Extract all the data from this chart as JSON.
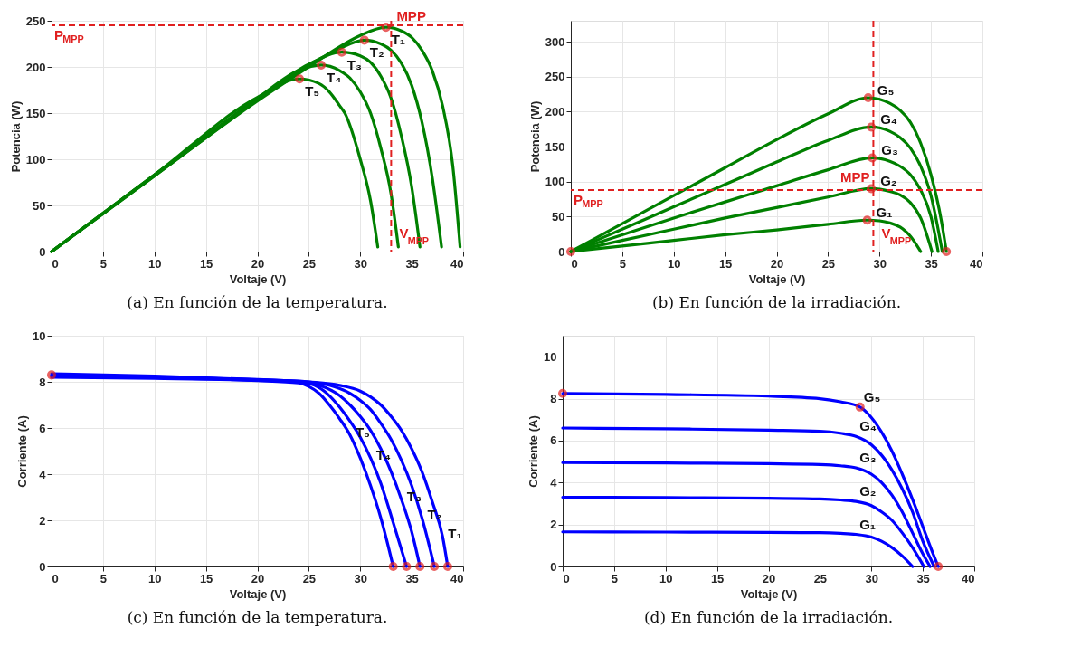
{
  "chart_data": [
    {
      "type": "line",
      "title": "(a) En función de la temperatura.",
      "xlabel": "Voltaje (V)",
      "ylabel": "Potencia (W)",
      "xlim": [
        0,
        40
      ],
      "xticks": [
        0,
        5,
        10,
        15,
        20,
        25,
        30,
        35,
        40
      ],
      "ylim": [
        0,
        250
      ],
      "yticks": [
        0,
        50,
        100,
        150,
        200,
        250
      ],
      "grid": true,
      "line_style": "solid",
      "series": [
        {
          "name": "T₁",
          "color": "#008000",
          "x": [
            0,
            10,
            20,
            25,
            28,
            30,
            32.5,
            34,
            35,
            36,
            37,
            38,
            39,
            39.7
          ],
          "values": [
            0,
            82,
            163,
            200,
            222,
            234,
            243,
            239,
            232,
            218,
            196,
            158,
            92,
            5
          ]
        },
        {
          "name": "T₂",
          "color": "#008000",
          "x": [
            0,
            10,
            20,
            25,
            28,
            30.4,
            32,
            33,
            34,
            35,
            36,
            37,
            37.9
          ],
          "values": [
            0,
            82,
            164,
            202,
            220,
            229,
            225,
            218,
            204,
            180,
            140,
            80,
            5
          ]
        },
        {
          "name": "T₃",
          "color": "#008000",
          "x": [
            0,
            10,
            20,
            25,
            28.2,
            30,
            31,
            32,
            33,
            34,
            35,
            35.8
          ],
          "values": [
            0,
            83,
            165,
            203,
            216,
            212,
            205,
            190,
            166,
            125,
            70,
            5
          ]
        },
        {
          "name": "T₄",
          "color": "#008000",
          "x": [
            0,
            10,
            20,
            24,
            26.2,
            28,
            29,
            30,
            31,
            32,
            33,
            33.7
          ],
          "values": [
            0,
            83,
            166,
            196,
            202,
            196,
            188,
            173,
            150,
            112,
            62,
            5
          ]
        },
        {
          "name": "T₅",
          "color": "#008000",
          "x": [
            0,
            10,
            20,
            24.1,
            26,
            27,
            28,
            28.5,
            30,
            31,
            31.7
          ],
          "values": [
            0,
            83,
            167,
            187,
            182,
            173,
            158,
            150,
            100,
            55,
            5
          ]
        },
        {
          "type": "scatter",
          "marker": "circle",
          "color": "#e02020",
          "x": [
            24.1,
            26.2,
            28.2,
            30.4,
            32.5
          ],
          "values": [
            187,
            202,
            216,
            229,
            243
          ]
        }
      ],
      "ref_lines": [
        {
          "axis": "y",
          "value": 245,
          "label": "P$_{MPP}$",
          "color": "#e02020",
          "line_style": "dashed"
        },
        {
          "axis": "x",
          "value": 33,
          "label": "V$_{MPP}$",
          "color": "#e02020",
          "line_style": "dashed"
        }
      ],
      "annotations": [
        "MPP"
      ]
    },
    {
      "type": "line",
      "title": "(b) En función de la irradiación.",
      "xlabel": "Voltaje (V)",
      "ylabel": "Potencia (W)",
      "xlim": [
        0,
        40
      ],
      "xticks": [
        0,
        5,
        10,
        15,
        20,
        25,
        30,
        35,
        40
      ],
      "ylim": [
        0,
        330
      ],
      "yticks": [
        0,
        50,
        100,
        150,
        200,
        250,
        300
      ],
      "grid": true,
      "line_style": "solid",
      "series": [
        {
          "name": "G₅",
          "color": "#008000",
          "x": [
            0,
            5,
            10,
            15,
            20,
            25,
            28.9,
            31,
            32,
            33,
            34,
            35,
            36,
            36.5
          ],
          "values": [
            0,
            40,
            80,
            120,
            160,
            197,
            220,
            212,
            202,
            185,
            155,
            110,
            45,
            0
          ]
        },
        {
          "name": "G₄",
          "color": "#008000",
          "x": [
            0,
            5,
            10,
            15,
            20,
            25,
            29.2,
            31,
            32,
            33,
            34,
            35,
            36.1
          ],
          "values": [
            0,
            32,
            64,
            96,
            128,
            159,
            178,
            172,
            163,
            148,
            122,
            80,
            0
          ]
        },
        {
          "name": "G₃",
          "color": "#008000",
          "x": [
            0,
            5,
            10,
            15,
            20,
            25,
            29.3,
            31,
            32,
            33,
            34,
            35,
            35.7
          ],
          "values": [
            0,
            24,
            48,
            71,
            94,
            117,
            134,
            129,
            122,
            110,
            88,
            50,
            0
          ]
        },
        {
          "name": "G₂",
          "color": "#008000",
          "x": [
            0,
            5,
            10,
            15,
            20,
            25,
            29.2,
            31,
            32,
            33,
            34,
            35.1
          ],
          "values": [
            0,
            16,
            32,
            48,
            63,
            78,
            90,
            86,
            81,
            70,
            48,
            0
          ]
        },
        {
          "name": "G₁",
          "color": "#008000",
          "x": [
            0,
            5,
            10,
            15,
            20,
            25,
            28.8,
            30,
            31,
            32,
            33,
            34
          ],
          "values": [
            0,
            8,
            16,
            24,
            31,
            39,
            45,
            44,
            41,
            35,
            22,
            0
          ]
        },
        {
          "type": "scatter",
          "marker": "circle",
          "color": "#e02020",
          "x": [
            0,
            28.9,
            29.2,
            29.3,
            29.2,
            28.8,
            36.5
          ],
          "values": [
            0,
            220,
            178,
            134,
            90,
            45,
            0
          ]
        }
      ],
      "ref_lines": [
        {
          "axis": "y",
          "value": 88,
          "label": "P$_{MPP}$",
          "color": "#e02020",
          "line_style": "dashed"
        },
        {
          "axis": "x",
          "value": 29.4,
          "label": "V$_{MPP}$",
          "color": "#e02020",
          "line_style": "dashed"
        }
      ],
      "annotations": [
        "MPP"
      ]
    },
    {
      "type": "line",
      "title": "(c) En función de la temperatura.",
      "xlabel": "Voltaje (V)",
      "ylabel": "Corriente (A)",
      "xlim": [
        0,
        40
      ],
      "xticks": [
        0,
        5,
        10,
        15,
        20,
        25,
        30,
        35,
        40
      ],
      "ylim": [
        0,
        10
      ],
      "yticks": [
        0,
        2,
        4,
        6,
        8,
        10
      ],
      "grid": true,
      "line_style": "solid",
      "series": [
        {
          "name": "T₁",
          "color": "#0000ff",
          "x": [
            0,
            10,
            20,
            25,
            28,
            30,
            31,
            32,
            33,
            34,
            35,
            36,
            37,
            38,
            38.5
          ],
          "values": [
            8.35,
            8.25,
            8.1,
            8.0,
            7.85,
            7.6,
            7.35,
            7.0,
            6.5,
            5.9,
            5.1,
            4.1,
            2.8,
            1.3,
            0
          ]
        },
        {
          "name": "T₂",
          "color": "#0000ff",
          "x": [
            0,
            10,
            20,
            25,
            27,
            29,
            30,
            31,
            32,
            33,
            34,
            35,
            36,
            37.2
          ],
          "values": [
            8.3,
            8.22,
            8.09,
            8.0,
            7.85,
            7.5,
            7.2,
            6.8,
            6.2,
            5.5,
            4.6,
            3.5,
            2.1,
            0
          ]
        },
        {
          "name": "T₃",
          "color": "#0000ff",
          "x": [
            0,
            10,
            20,
            24,
            26,
            28,
            29,
            30,
            31,
            32,
            33,
            34,
            35,
            35.8
          ],
          "values": [
            8.28,
            8.2,
            8.08,
            8.0,
            7.85,
            7.4,
            7.0,
            6.5,
            5.9,
            5.1,
            4.1,
            2.9,
            1.5,
            0
          ]
        },
        {
          "name": "T₄",
          "color": "#0000ff",
          "x": [
            0,
            10,
            20,
            24,
            26,
            27,
            28,
            29,
            30,
            31,
            32,
            33,
            34.5
          ],
          "values": [
            8.25,
            8.18,
            8.07,
            8.0,
            7.75,
            7.4,
            6.9,
            6.3,
            5.6,
            4.7,
            3.6,
            2.2,
            0
          ]
        },
        {
          "name": "T₅",
          "color": "#0000ff",
          "x": [
            0,
            10,
            20,
            24,
            25,
            26,
            27,
            28,
            29,
            30,
            31,
            32,
            33.2
          ],
          "values": [
            8.2,
            8.15,
            8.05,
            7.95,
            7.8,
            7.5,
            7.0,
            6.4,
            5.7,
            4.7,
            3.5,
            2.1,
            0
          ]
        },
        {
          "type": "scatter",
          "marker": "circle",
          "color": "#e02020",
          "x": [
            0,
            33.2,
            34.5,
            35.8,
            37.2,
            38.5
          ],
          "values": [
            8.3,
            0,
            0,
            0,
            0,
            0
          ]
        }
      ]
    },
    {
      "type": "line",
      "title": "(d) En función de la irradiación.",
      "xlabel": "Voltaje (V)",
      "ylabel": "Corriente (A)",
      "xlim": [
        0,
        40
      ],
      "xticks": [
        0,
        5,
        10,
        15,
        20,
        25,
        30,
        35,
        40
      ],
      "ylim": [
        0,
        11
      ],
      "yticks": [
        0,
        2,
        4,
        6,
        8,
        10
      ],
      "grid": true,
      "line_style": "solid",
      "series": [
        {
          "name": "G₅",
          "color": "#0000ff",
          "x": [
            0,
            10,
            20,
            25,
            27,
            28.9,
            30,
            31,
            32,
            33,
            34,
            35,
            36,
            36.5
          ],
          "values": [
            8.25,
            8.2,
            8.12,
            8.0,
            7.85,
            7.6,
            7.1,
            6.4,
            5.5,
            4.4,
            3.2,
            1.9,
            0.6,
            0
          ]
        },
        {
          "name": "G₄",
          "color": "#0000ff",
          "x": [
            0,
            10,
            20,
            25,
            27,
            28.5,
            30,
            31,
            32,
            33,
            34,
            35,
            36.1
          ],
          "values": [
            6.6,
            6.56,
            6.5,
            6.45,
            6.35,
            6.2,
            5.8,
            5.3,
            4.6,
            3.7,
            2.6,
            1.2,
            0
          ]
        },
        {
          "name": "G₃",
          "color": "#0000ff",
          "x": [
            0,
            10,
            20,
            25,
            27,
            28.5,
            30,
            31,
            32,
            33,
            34,
            35,
            35.7
          ],
          "values": [
            4.95,
            4.93,
            4.9,
            4.86,
            4.8,
            4.7,
            4.4,
            4.0,
            3.4,
            2.6,
            1.6,
            0.6,
            0
          ]
        },
        {
          "name": "G₂",
          "color": "#0000ff",
          "x": [
            0,
            10,
            20,
            25,
            27,
            28.5,
            30,
            31,
            32,
            33,
            34,
            35.1
          ],
          "values": [
            3.3,
            3.28,
            3.25,
            3.22,
            3.17,
            3.1,
            2.9,
            2.6,
            2.2,
            1.6,
            0.9,
            0
          ]
        },
        {
          "name": "G₁",
          "color": "#0000ff",
          "x": [
            0,
            10,
            20,
            25,
            27,
            28.5,
            30,
            31,
            32,
            33,
            34
          ],
          "values": [
            1.65,
            1.64,
            1.62,
            1.61,
            1.58,
            1.53,
            1.4,
            1.2,
            0.9,
            0.5,
            0
          ]
        },
        {
          "type": "scatter",
          "marker": "circle",
          "color": "#e02020",
          "x": [
            0,
            28.9,
            36.5
          ],
          "values": [
            8.25,
            7.6,
            0
          ]
        }
      ]
    }
  ]
}
